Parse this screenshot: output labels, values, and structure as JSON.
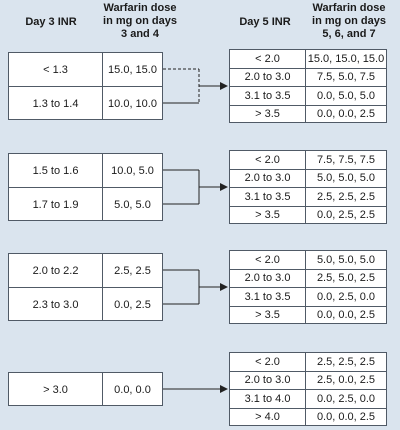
{
  "headers": {
    "left_inr": "Day 3 INR",
    "left_dose": [
      "Warfarin dose",
      "in mg on days",
      "3 and 4"
    ],
    "right_inr": "Day 5 INR",
    "right_dose": [
      "Warfarin dose",
      "in mg on days",
      "5, 6, and 7"
    ]
  },
  "groups": [
    {
      "left": [
        {
          "inr": "< 1.3",
          "dose": "15.0, 15.0"
        },
        {
          "inr": "1.3 to 1.4",
          "dose": "10.0, 10.0"
        }
      ],
      "right": [
        {
          "inr": "< 2.0",
          "dose": "15.0, 15.0, 15.0"
        },
        {
          "inr": "2.0 to 3.0",
          "dose": "7.5, 5.0, 7.5"
        },
        {
          "inr": "3.1 to 3.5",
          "dose": "0.0, 5.0, 5.0"
        },
        {
          "inr": "> 3.5",
          "dose": "0.0, 0.0, 2.5"
        }
      ]
    },
    {
      "left": [
        {
          "inr": "1.5 to 1.6",
          "dose": "10.0, 5.0"
        },
        {
          "inr": "1.7 to 1.9",
          "dose": "5.0, 5.0"
        }
      ],
      "right": [
        {
          "inr": "< 2.0",
          "dose": "7.5, 7.5, 7.5"
        },
        {
          "inr": "2.0 to 3.0",
          "dose": "5.0, 5.0, 5.0"
        },
        {
          "inr": "3.1 to 3.5",
          "dose": "2.5, 2.5, 2.5"
        },
        {
          "inr": "> 3.5",
          "dose": "0.0, 2.5, 2.5"
        }
      ]
    },
    {
      "left": [
        {
          "inr": "2.0 to 2.2",
          "dose": "2.5, 2.5"
        },
        {
          "inr": "2.3 to 3.0",
          "dose": "0.0, 2.5"
        }
      ],
      "right": [
        {
          "inr": "< 2.0",
          "dose": "5.0, 5.0, 5.0"
        },
        {
          "inr": "2.0 to 3.0",
          "dose": "2.5, 5.0, 2.5"
        },
        {
          "inr": "3.1 to 3.5",
          "dose": "0.0, 2.5, 0.0"
        },
        {
          "inr": "> 3.5",
          "dose": "0.0, 0.0, 2.5"
        }
      ]
    },
    {
      "left": [
        {
          "inr": "> 3.0",
          "dose": "0.0, 0.0"
        }
      ],
      "right": [
        {
          "inr": "< 2.0",
          "dose": "2.5, 2.5, 2.5"
        },
        {
          "inr": "2.0 to 3.0",
          "dose": "2.5, 0.0, 2.5"
        },
        {
          "inr": "3.1 to 4.0",
          "dose": "0.0, 2.5, 0.0"
        },
        {
          "inr": "> 4.0",
          "dose": "0.0, 0.0, 2.5"
        }
      ]
    }
  ],
  "colors": {
    "background": "#dae4ee",
    "box_fill": "#ffffff",
    "border": "#505a66",
    "connector": "#222222"
  }
}
